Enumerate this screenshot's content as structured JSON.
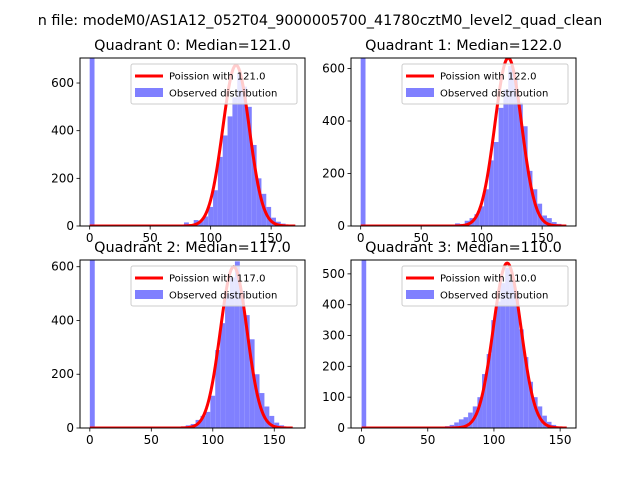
{
  "figure": {
    "suptitle": "n file: modeM0/AS1A12_052T04_9000005700_41780cztM0_level2_quad_clean",
    "colors": {
      "hist": "#8080ff",
      "fit": "#ff0000"
    }
  },
  "chart_data": [
    {
      "type": "bar",
      "title": "Quadrant 0: Median=121.0",
      "xlabel": "",
      "ylabel": "",
      "xlim": [
        -8,
        178
      ],
      "ylim": [
        0,
        705
      ],
      "xticks": [
        "0",
        "50",
        "100",
        "150"
      ],
      "xtick_values": [
        0,
        50,
        100,
        150
      ],
      "yticks": [
        "0",
        "200",
        "400",
        "600"
      ],
      "ytick_values": [
        0,
        200,
        400,
        600
      ],
      "bin_width": 4,
      "bins": [
        {
          "x": 0,
          "count": 705
        },
        {
          "x": 74,
          "count": 6
        },
        {
          "x": 78,
          "count": 15
        },
        {
          "x": 82,
          "count": 8
        },
        {
          "x": 86,
          "count": 25
        },
        {
          "x": 90,
          "count": 20
        },
        {
          "x": 94,
          "count": 40
        },
        {
          "x": 98,
          "count": 80
        },
        {
          "x": 102,
          "count": 150
        },
        {
          "x": 106,
          "count": 290
        },
        {
          "x": 110,
          "count": 380
        },
        {
          "x": 114,
          "count": 460
        },
        {
          "x": 118,
          "count": 540
        },
        {
          "x": 122,
          "count": 640
        },
        {
          "x": 126,
          "count": 585
        },
        {
          "x": 130,
          "count": 500
        },
        {
          "x": 134,
          "count": 340
        },
        {
          "x": 138,
          "count": 200
        },
        {
          "x": 142,
          "count": 135
        },
        {
          "x": 146,
          "count": 80
        },
        {
          "x": 150,
          "count": 35
        },
        {
          "x": 154,
          "count": 18
        },
        {
          "x": 158,
          "count": 10
        },
        {
          "x": 162,
          "count": 4
        }
      ],
      "fit": {
        "mean": 121.0,
        "peak": 675,
        "xrange": [
          0,
          170
        ]
      },
      "legend": {
        "location": "upper right",
        "entries": [
          "Poission with 121.0",
          "Observed distribution"
        ]
      }
    },
    {
      "type": "bar",
      "title": "Quadrant 1: Median=122.0",
      "xlabel": "",
      "ylabel": "",
      "xlim": [
        -8,
        178
      ],
      "ylim": [
        0,
        640
      ],
      "xticks": [
        "0",
        "50",
        "100",
        "150"
      ],
      "xtick_values": [
        0,
        50,
        100,
        150
      ],
      "yticks": [
        "0",
        "200",
        "400",
        "600"
      ],
      "ytick_values": [
        0,
        200,
        400,
        600
      ],
      "bin_width": 4,
      "bins": [
        {
          "x": 0,
          "count": 640
        },
        {
          "x": 78,
          "count": 10
        },
        {
          "x": 82,
          "count": 8
        },
        {
          "x": 86,
          "count": 20
        },
        {
          "x": 90,
          "count": 30
        },
        {
          "x": 94,
          "count": 45
        },
        {
          "x": 98,
          "count": 75
        },
        {
          "x": 102,
          "count": 140
        },
        {
          "x": 106,
          "count": 250
        },
        {
          "x": 110,
          "count": 320
        },
        {
          "x": 114,
          "count": 450
        },
        {
          "x": 118,
          "count": 520
        },
        {
          "x": 122,
          "count": 610
        },
        {
          "x": 126,
          "count": 560
        },
        {
          "x": 130,
          "count": 470
        },
        {
          "x": 134,
          "count": 380
        },
        {
          "x": 138,
          "count": 210
        },
        {
          "x": 142,
          "count": 140
        },
        {
          "x": 146,
          "count": 85
        },
        {
          "x": 150,
          "count": 40
        },
        {
          "x": 154,
          "count": 30
        },
        {
          "x": 158,
          "count": 15
        },
        {
          "x": 162,
          "count": 8
        },
        {
          "x": 166,
          "count": 4
        }
      ],
      "fit": {
        "mean": 122.0,
        "peak": 640,
        "xrange": [
          0,
          170
        ]
      },
      "legend": {
        "location": "upper right",
        "entries": [
          "Poission with 122.0",
          "Observed distribution"
        ]
      }
    },
    {
      "type": "bar",
      "title": "Quadrant 2: Median=117.0",
      "xlabel": "",
      "ylabel": "",
      "xlim": [
        -8,
        175
      ],
      "ylim": [
        0,
        625
      ],
      "xticks": [
        "0",
        "50",
        "100",
        "150"
      ],
      "xtick_values": [
        0,
        50,
        100,
        150
      ],
      "yticks": [
        "0",
        "200",
        "400",
        "600"
      ],
      "ytick_values": [
        0,
        200,
        400,
        600
      ],
      "bin_width": 4,
      "bins": [
        {
          "x": 0,
          "count": 625
        },
        {
          "x": 74,
          "count": 6
        },
        {
          "x": 78,
          "count": 10
        },
        {
          "x": 82,
          "count": 15
        },
        {
          "x": 86,
          "count": 30
        },
        {
          "x": 90,
          "count": 45
        },
        {
          "x": 94,
          "count": 60
        },
        {
          "x": 98,
          "count": 120
        },
        {
          "x": 102,
          "count": 290
        },
        {
          "x": 106,
          "count": 390
        },
        {
          "x": 110,
          "count": 500
        },
        {
          "x": 114,
          "count": 560
        },
        {
          "x": 118,
          "count": 620
        },
        {
          "x": 122,
          "count": 510
        },
        {
          "x": 126,
          "count": 420
        },
        {
          "x": 130,
          "count": 330
        },
        {
          "x": 134,
          "count": 200
        },
        {
          "x": 138,
          "count": 130
        },
        {
          "x": 142,
          "count": 80
        },
        {
          "x": 146,
          "count": 45
        },
        {
          "x": 150,
          "count": 20
        },
        {
          "x": 154,
          "count": 10
        },
        {
          "x": 158,
          "count": 5
        }
      ],
      "fit": {
        "mean": 117.0,
        "peak": 600,
        "xrange": [
          0,
          165
        ]
      },
      "legend": {
        "location": "upper right",
        "entries": [
          "Poission with 117.0",
          "Observed distribution"
        ]
      }
    },
    {
      "type": "bar",
      "title": "Quadrant 3: Median=110.0",
      "xlabel": "",
      "ylabel": "",
      "xlim": [
        -8,
        162
      ],
      "ylim": [
        0,
        545
      ],
      "xticks": [
        "0",
        "50",
        "100",
        "150"
      ],
      "xtick_values": [
        0,
        50,
        100,
        150
      ],
      "yticks": [
        "0",
        "100",
        "200",
        "300",
        "400",
        "500"
      ],
      "ytick_values": [
        0,
        100,
        200,
        300,
        400,
        500
      ],
      "bin_width": 3.5,
      "bins": [
        {
          "x": 0,
          "count": 545
        },
        {
          "x": 63,
          "count": 6
        },
        {
          "x": 66.5,
          "count": 10
        },
        {
          "x": 70,
          "count": 18
        },
        {
          "x": 73.5,
          "count": 28
        },
        {
          "x": 77,
          "count": 35
        },
        {
          "x": 80.5,
          "count": 50
        },
        {
          "x": 84,
          "count": 70
        },
        {
          "x": 87.5,
          "count": 100
        },
        {
          "x": 91,
          "count": 175
        },
        {
          "x": 94.5,
          "count": 240
        },
        {
          "x": 98,
          "count": 350
        },
        {
          "x": 101.5,
          "count": 410
        },
        {
          "x": 105,
          "count": 470
        },
        {
          "x": 108.5,
          "count": 520
        },
        {
          "x": 112,
          "count": 480
        },
        {
          "x": 115.5,
          "count": 430
        },
        {
          "x": 119,
          "count": 320
        },
        {
          "x": 122.5,
          "count": 230
        },
        {
          "x": 126,
          "count": 150
        },
        {
          "x": 129.5,
          "count": 100
        },
        {
          "x": 133,
          "count": 70
        },
        {
          "x": 136.5,
          "count": 40
        },
        {
          "x": 140,
          "count": 20
        },
        {
          "x": 143.5,
          "count": 10
        },
        {
          "x": 147,
          "count": 5
        }
      ],
      "fit": {
        "mean": 110.0,
        "peak": 535,
        "xrange": [
          0,
          155
        ]
      },
      "legend": {
        "location": "upper right",
        "entries": [
          "Poission with 110.0",
          "Observed distribution"
        ]
      }
    }
  ]
}
